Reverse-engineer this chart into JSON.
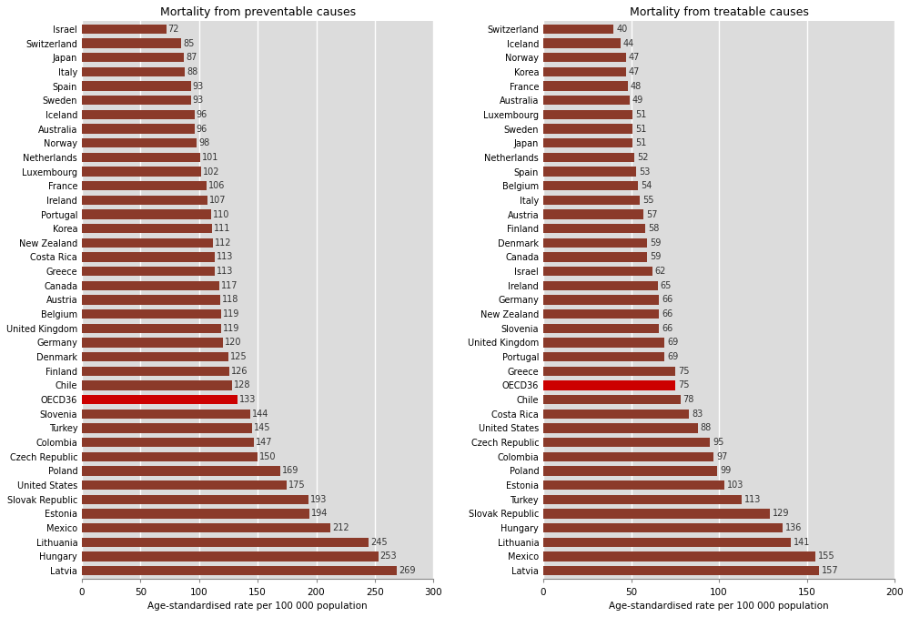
{
  "preventable": {
    "title": "Mortality from preventable causes",
    "countries": [
      "Israel",
      "Switzerland",
      "Japan",
      "Italy",
      "Spain",
      "Sweden",
      "Iceland",
      "Australia",
      "Norway",
      "Netherlands",
      "Luxembourg",
      "France",
      "Ireland",
      "Portugal",
      "Korea",
      "New Zealand",
      "Costa Rica",
      "Greece",
      "Canada",
      "Austria",
      "Belgium",
      "United Kingdom",
      "Germany",
      "Denmark",
      "Finland",
      "Chile",
      "OECD36",
      "Slovenia",
      "Turkey",
      "Colombia",
      "Czech Republic",
      "Poland",
      "United States",
      "Slovak Republic",
      "Estonia",
      "Mexico",
      "Lithuania",
      "Hungary",
      "Latvia"
    ],
    "values": [
      72,
      85,
      87,
      88,
      93,
      93,
      96,
      96,
      98,
      101,
      102,
      106,
      107,
      110,
      111,
      112,
      113,
      113,
      117,
      118,
      119,
      119,
      120,
      125,
      126,
      128,
      133,
      144,
      145,
      147,
      150,
      169,
      175,
      193,
      194,
      212,
      245,
      253,
      269
    ],
    "oecd_index": 26,
    "xlim": [
      0,
      300
    ],
    "xticks": [
      0,
      50,
      100,
      150,
      200,
      250,
      300
    ],
    "xlabel": "Age-standardised rate per 100 000 population"
  },
  "treatable": {
    "title": "Mortality from treatable causes",
    "countries": [
      "Switzerland",
      "Iceland",
      "Norway",
      "Korea",
      "France",
      "Australia",
      "Luxembourg",
      "Sweden",
      "Japan",
      "Netherlands",
      "Spain",
      "Belgium",
      "Italy",
      "Austria",
      "Finland",
      "Denmark",
      "Canada",
      "Israel",
      "Ireland",
      "Germany",
      "New Zealand",
      "Slovenia",
      "United Kingdom",
      "Portugal",
      "Greece",
      "OECD36",
      "Chile",
      "Costa Rica",
      "United States",
      "Czech Republic",
      "Colombia",
      "Poland",
      "Estonia",
      "Turkey",
      "Slovak Republic",
      "Hungary",
      "Lithuania",
      "Mexico",
      "Latvia"
    ],
    "values": [
      40,
      44,
      47,
      47,
      48,
      49,
      51,
      51,
      51,
      52,
      53,
      54,
      55,
      57,
      58,
      59,
      59,
      62,
      65,
      66,
      66,
      66,
      69,
      69,
      75,
      75,
      78,
      83,
      88,
      95,
      97,
      99,
      103,
      113,
      129,
      136,
      141,
      155,
      157
    ],
    "oecd_index": 25,
    "xlim": [
      0,
      200
    ],
    "xticks": [
      0,
      50,
      100,
      150,
      200
    ],
    "xlabel": "Age-standardised rate per 100 000 population"
  },
  "bar_color": "#8B3A2A",
  "oecd_bar_color": "#CC0000",
  "background_color": "#DCDCDC",
  "bar_height": 0.65,
  "title_fontsize": 9,
  "label_fontsize": 7,
  "value_fontsize": 7,
  "tick_fontsize": 7.5,
  "xlabel_fontsize": 7.5,
  "grid_color": "#FFFFFF",
  "text_color": "#333333"
}
